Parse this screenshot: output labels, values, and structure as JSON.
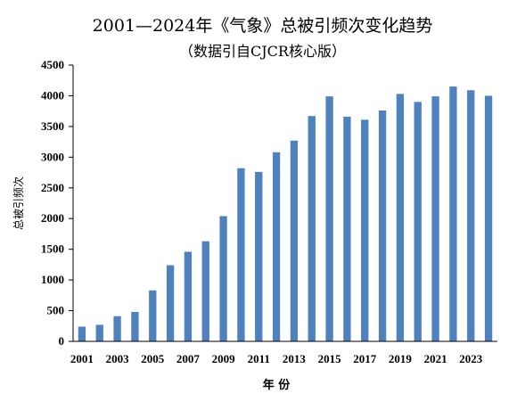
{
  "chart_data": {
    "type": "bar",
    "title": "2001—2024年《气象》总被引频次变化趋势",
    "subtitle": "（数据引自CJCR核心版）",
    "xlabel": "年 份",
    "ylabel": "总被引频次",
    "ylim": [
      0,
      4500
    ],
    "yticks": [
      "0",
      "500",
      "1000",
      "1500",
      "2000",
      "2500",
      "3000",
      "3500",
      "4000",
      "4500"
    ],
    "categories": [
      "2001",
      "2002",
      "2003",
      "2004",
      "2005",
      "2006",
      "2007",
      "2008",
      "2009",
      "2010",
      "2011",
      "2012",
      "2013",
      "2014",
      "2015",
      "2016",
      "2017",
      "2018",
      "2019",
      "2020",
      "2021",
      "2022",
      "2023",
      "2024"
    ],
    "xtick_labels": [
      "2001",
      "2003",
      "2005",
      "2007",
      "2009",
      "2011",
      "2013",
      "2015",
      "2017",
      "2019",
      "2021",
      "2023"
    ],
    "values": [
      240,
      270,
      410,
      480,
      830,
      1240,
      1460,
      1630,
      2040,
      2820,
      2760,
      3080,
      3270,
      3670,
      3990,
      3660,
      3610,
      3760,
      4030,
      3900,
      3990,
      4150,
      4090,
      4000
    ],
    "grid": false,
    "legend": "none",
    "bar_color": "#4F81BD"
  }
}
